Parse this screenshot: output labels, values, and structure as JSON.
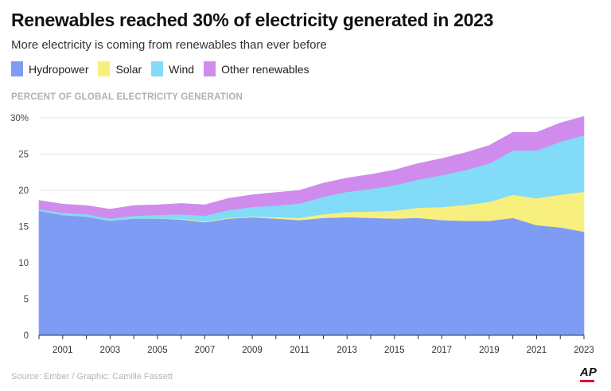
{
  "header": {
    "title": "Renewables reached 30% of electricity generated in 2023",
    "subtitle": "More electricity is coming from renewables than ever before"
  },
  "legend": [
    {
      "label": "Hydropower",
      "color": "#7f9cf5"
    },
    {
      "label": "Solar",
      "color": "#f7f07e"
    },
    {
      "label": "Wind",
      "color": "#82dbf7"
    },
    {
      "label": "Other renewables",
      "color": "#cf8cec"
    }
  ],
  "footer": {
    "source": "Source: Ember / Graphic: Camille Fassett",
    "logo": "AP"
  },
  "chart_data": {
    "type": "area",
    "stacked": true,
    "title": "Renewables reached 30% of electricity generated in 2023",
    "ylabel": "PERCENT OF GLOBAL ELECTRICITY GENERATION",
    "xlabel": "",
    "ylim": [
      0,
      30
    ],
    "yticks": [
      "0",
      "5",
      "10",
      "15",
      "20",
      "25",
      "30%"
    ],
    "xticks": [
      "2001",
      "2003",
      "2005",
      "2007",
      "2009",
      "2011",
      "2013",
      "2015",
      "2017",
      "2019",
      "2021",
      "2023"
    ],
    "xlim": [
      2000,
      2023
    ],
    "x": [
      2000,
      2001,
      2002,
      2003,
      2004,
      2005,
      2006,
      2007,
      2008,
      2009,
      2010,
      2011,
      2012,
      2013,
      2014,
      2015,
      2016,
      2017,
      2018,
      2019,
      2020,
      2021,
      2022,
      2023
    ],
    "series": [
      {
        "name": "Hydropower",
        "color": "#7f9cf5",
        "values": [
          17.2,
          16.6,
          16.4,
          15.8,
          16.1,
          16.1,
          16.0,
          15.6,
          16.1,
          16.3,
          16.1,
          15.9,
          16.2,
          16.3,
          16.2,
          16.1,
          16.2,
          15.9,
          15.8,
          15.8,
          16.2,
          15.2,
          14.9,
          14.3
        ]
      },
      {
        "name": "Solar",
        "color": "#f7f07e",
        "values": [
          0.0,
          0.0,
          0.0,
          0.0,
          0.0,
          0.0,
          0.1,
          0.1,
          0.1,
          0.1,
          0.2,
          0.3,
          0.5,
          0.7,
          0.9,
          1.1,
          1.4,
          1.8,
          2.2,
          2.6,
          3.2,
          3.7,
          4.5,
          5.5
        ]
      },
      {
        "name": "Wind",
        "color": "#82dbf7",
        "values": [
          0.2,
          0.3,
          0.3,
          0.3,
          0.4,
          0.5,
          0.6,
          0.8,
          1.1,
          1.3,
          1.6,
          2.0,
          2.4,
          2.8,
          3.1,
          3.5,
          3.9,
          4.4,
          4.8,
          5.3,
          6.1,
          6.6,
          7.3,
          7.8
        ]
      },
      {
        "name": "Other renewables",
        "color": "#cf8cec",
        "values": [
          1.2,
          1.2,
          1.2,
          1.3,
          1.4,
          1.4,
          1.5,
          1.5,
          1.6,
          1.7,
          1.8,
          1.8,
          1.9,
          1.9,
          2.0,
          2.1,
          2.2,
          2.3,
          2.4,
          2.5,
          2.5,
          2.5,
          2.6,
          2.6
        ]
      }
    ]
  }
}
